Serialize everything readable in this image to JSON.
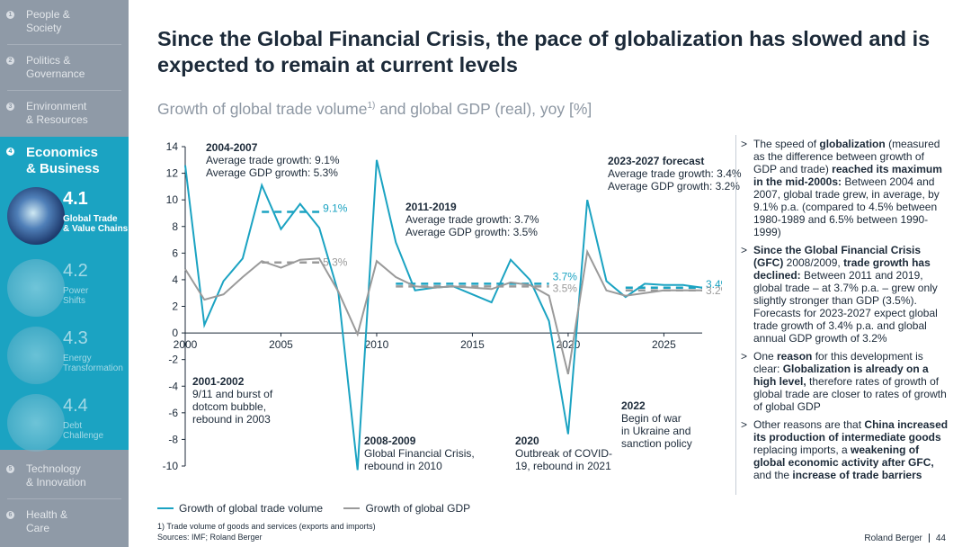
{
  "nav": {
    "items_top": [
      {
        "num": "1",
        "label": "People &\nSociety"
      },
      {
        "num": "2",
        "label": "Politics &\nGovernance"
      },
      {
        "num": "3",
        "label": "Environment\n& Resources"
      }
    ],
    "active": {
      "num": "4",
      "label": "Economics\n& Business"
    },
    "subs": [
      {
        "num": "4.1",
        "label": "Global Trade\n& Value Chains"
      },
      {
        "num": "4.2",
        "label": "Power\nShifts"
      },
      {
        "num": "4.3",
        "label": "Energy\nTransformation"
      },
      {
        "num": "4.4",
        "label": "Debt\nChallenge"
      }
    ],
    "items_bottom": [
      {
        "num": "5",
        "label": "Technology\n& Innovation"
      },
      {
        "num": "6",
        "label": "Health &\nCare"
      }
    ]
  },
  "header": {
    "title": "Since the Global Financial Crisis, the pace of globalization has slowed and is expected to remain at current levels",
    "subtitle": "Growth of global trade volume",
    "subtitle_sup": "1)",
    "subtitle_tail": " and global GDP (real), yoy [%]"
  },
  "annotations": {
    "a2004": {
      "head": "2004-2007",
      "body": "Average trade growth: 9.1%\nAverage GDP growth: 5.3%"
    },
    "a2011": {
      "head": "2011-2019",
      "body": "Average trade growth: 3.7%\nAverage GDP growth: 3.5%"
    },
    "a2023": {
      "head": "2023-2027 forecast",
      "body": "Average trade growth: 3.4%\nAverage GDP growth: 3.2%"
    },
    "a2001": {
      "head": "2001-2002",
      "body": "9/11 and burst of\ndotcom bubble,\nrebound in 2003"
    },
    "a2008": {
      "head": "2008-2009",
      "body": "Global Financial Crisis,\nrebound in 2010"
    },
    "a2020": {
      "head": "2020",
      "body": "Outbreak of COVID-\n19, rebound in 2021"
    },
    "a2022": {
      "head": "2022",
      "body": "Begin of war\nin Ukraine and\nsanction policy"
    }
  },
  "legend": {
    "trade": "Growth of global trade volume",
    "gdp": "Growth of global GDP"
  },
  "footnote": {
    "line1": "1) Trade volume of goods and services (exports and imports)",
    "line2": "Sources: IMF; Roland Berger"
  },
  "bullets": [
    {
      "pre": "The speed of ",
      "b1": "globalization",
      "mid": " (measured as the difference between growth of GDP and trade) ",
      "b2": "reached its maximum in the mid-2000s:",
      "post": " Between 2004 and 2007, global trade grew, in average, by 9.1% p.a. (compared to 4.5% between 1980-1989 and 6.5% between 1990-1999)"
    },
    {
      "pre": "",
      "b1": "Since the Global Financial Crisis (GFC)",
      "mid": " 2008/2009, ",
      "b2": "trade growth has declined:",
      "post": " Between 2011 and 2019, global trade – at 3.7% p.a. – grew only slightly stronger than GDP (3.5%). Forecasts for 2023-2027 expect global trade growth of 3.4% p.a. and global annual GDP growth of 3.2%"
    },
    {
      "pre": "One ",
      "b1": "reason",
      "mid": " for this development is clear: ",
      "b2": "Globalization is already on a high level,",
      "post": " therefore rates of growth of global trade are closer to rates of growth of global GDP"
    },
    {
      "pre": "Other reasons are that ",
      "b1": "China increased its production of intermediate goods",
      "mid": " replacing imports, a ",
      "b2": "weakening of global economic activity after GFC,",
      "post": " and the ",
      "b3": "increase of trade barriers"
    }
  ],
  "brand": {
    "name": "Roland Berger",
    "page": "44"
  },
  "colors": {
    "trade": "#1ba3c2",
    "gdp": "#9a9a9a",
    "sidebar": "#8f9aa7",
    "active": "#1ba3c2"
  },
  "chart_data": {
    "type": "line",
    "title": "Growth of global trade volume and global GDP (real), yoy [%]",
    "xlabel": "",
    "ylabel": "",
    "xlim": [
      2000,
      2027
    ],
    "ylim": [
      -10,
      14
    ],
    "x_ticks": [
      "2000",
      "2005",
      "2010",
      "2015",
      "2020",
      "2025"
    ],
    "y_ticks": [
      "14",
      "12",
      "10",
      "8",
      "6",
      "4",
      "2",
      "0",
      "-2",
      "-4",
      "-6",
      "-8",
      "-10"
    ],
    "x": [
      2000,
      2001,
      2002,
      2003,
      2004,
      2005,
      2006,
      2007,
      2008,
      2009,
      2010,
      2011,
      2012,
      2013,
      2014,
      2015,
      2016,
      2017,
      2018,
      2019,
      2020,
      2021,
      2022,
      2023,
      2024,
      2025,
      2026,
      2027
    ],
    "series": [
      {
        "name": "Growth of global trade volume",
        "values": [
          12.6,
          0.6,
          3.9,
          5.6,
          11.1,
          7.8,
          9.7,
          7.9,
          3.0,
          -10.3,
          13.0,
          6.8,
          3.2,
          3.4,
          3.5,
          2.9,
          2.3,
          5.5,
          4.0,
          0.9,
          -7.6,
          10.0,
          3.9,
          2.7,
          3.7,
          3.6,
          3.6,
          3.4
        ]
      },
      {
        "name": "Growth of global GDP",
        "values": [
          4.8,
          2.5,
          2.9,
          4.2,
          5.4,
          4.9,
          5.5,
          5.6,
          3.1,
          -0.1,
          5.4,
          4.2,
          3.5,
          3.4,
          3.5,
          3.4,
          3.3,
          3.8,
          3.6,
          2.8,
          -3.1,
          6.1,
          3.2,
          2.8,
          3.0,
          3.2,
          3.2,
          3.2
        ]
      }
    ],
    "averages": [
      {
        "series": "trade",
        "from": 2004,
        "to": 2007,
        "value": 9.1,
        "label": "9.1%"
      },
      {
        "series": "gdp",
        "from": 2004,
        "to": 2007,
        "value": 5.3,
        "label": "5.3%"
      },
      {
        "series": "trade",
        "from": 2011,
        "to": 2019,
        "value": 3.7,
        "label": "3.7%"
      },
      {
        "series": "gdp",
        "from": 2011,
        "to": 2019,
        "value": 3.5,
        "label": "3.5%"
      },
      {
        "series": "trade",
        "from": 2023,
        "to": 2027,
        "value": 3.4,
        "label": "3.4%"
      },
      {
        "series": "gdp",
        "from": 2023,
        "to": 2027,
        "value": 3.2,
        "label": "3.2%"
      }
    ]
  }
}
